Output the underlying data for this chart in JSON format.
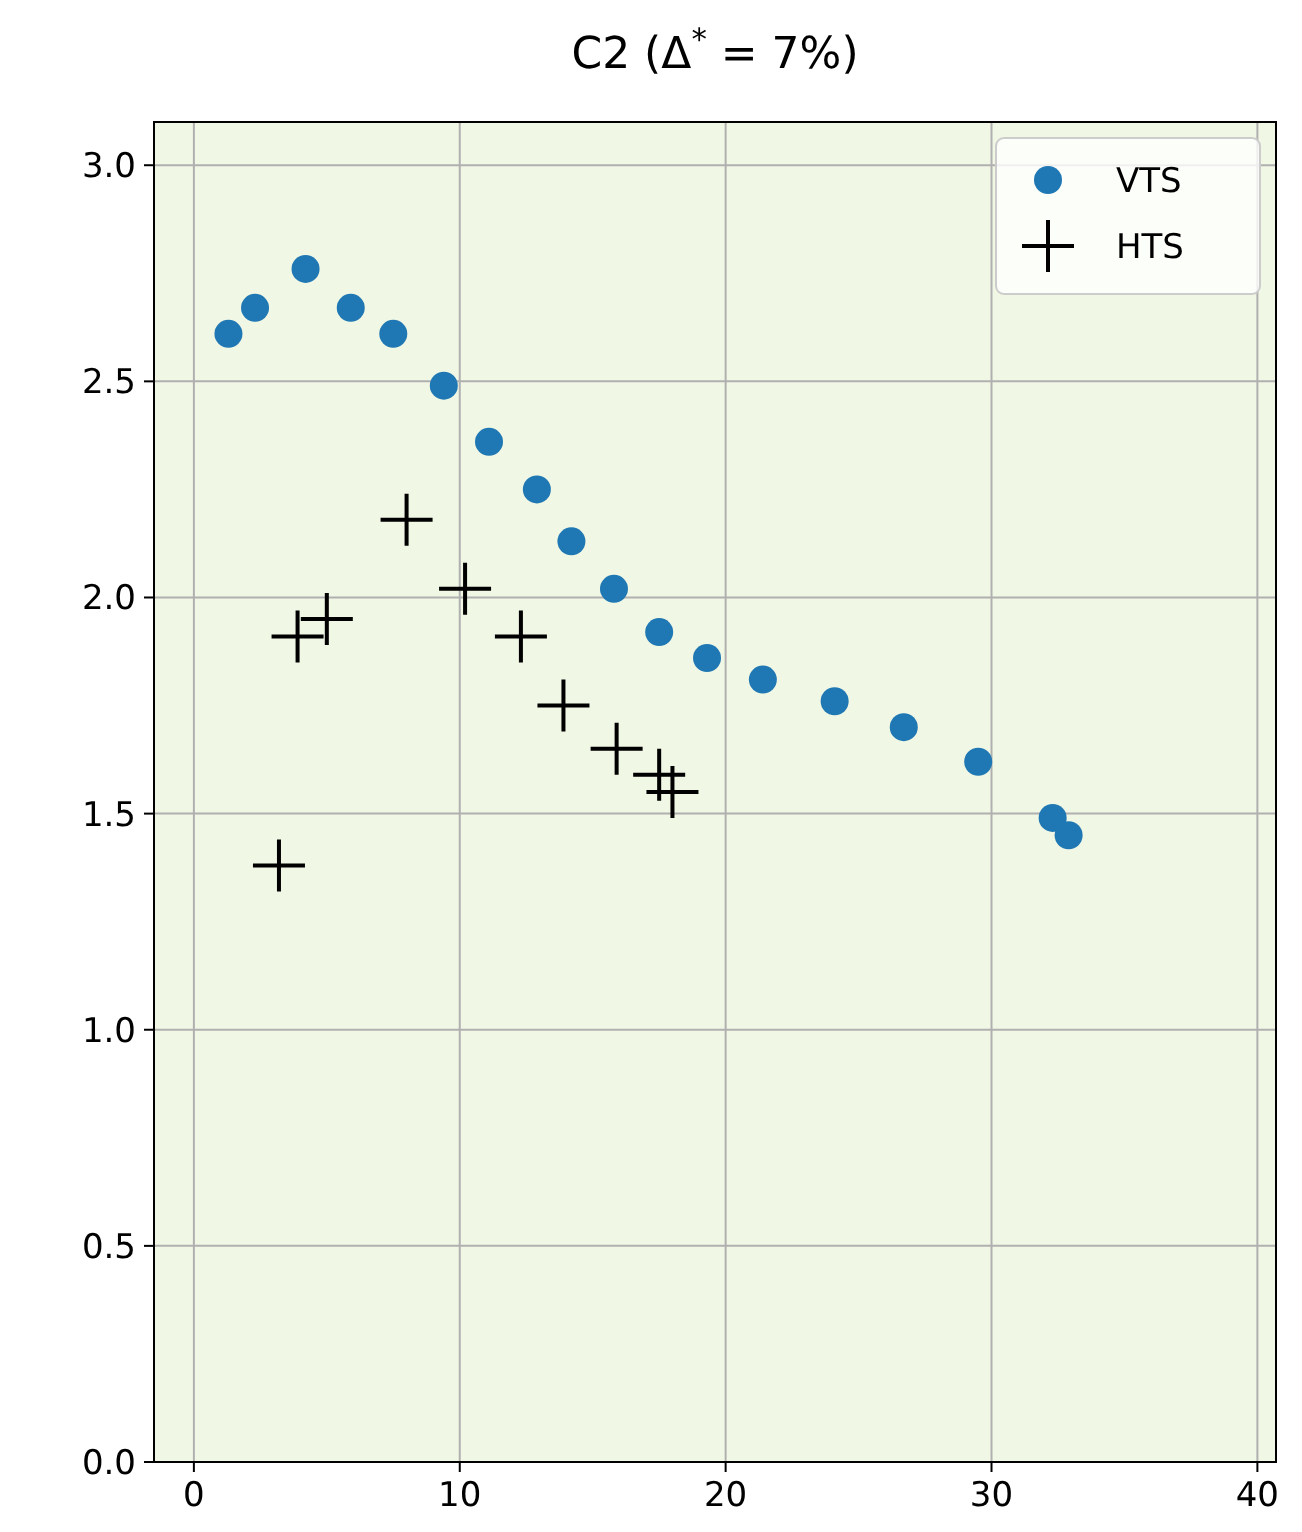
{
  "chart_data": {
    "type": "scatter",
    "title": "C2 (Δ$^{*}$ = 7%)",
    "series": [
      {
        "name": "VTS",
        "color": "#1f77b4",
        "marker": "circle",
        "x": [
          1.3,
          2.3,
          4.2,
          5.9,
          7.5,
          9.4,
          11.1,
          12.9,
          14.2,
          15.8,
          17.5,
          19.3,
          21.4,
          24.1,
          26.7,
          29.5,
          32.3,
          32.9
        ],
        "values": [
          2.61,
          2.67,
          2.76,
          2.67,
          2.61,
          2.49,
          2.36,
          2.25,
          2.13,
          2.02,
          1.92,
          1.86,
          1.81,
          1.76,
          1.7,
          1.62,
          1.49,
          1.45
        ]
      },
      {
        "name": "HTS",
        "color": "#000000",
        "marker": "cross",
        "x": [
          3.2,
          3.9,
          5.0,
          8.0,
          10.2,
          12.3,
          13.9,
          15.9,
          17.5,
          18.0
        ],
        "values": [
          1.38,
          1.91,
          1.95,
          2.18,
          2.02,
          1.91,
          1.75,
          1.65,
          1.59,
          1.55
        ]
      }
    ],
    "xlim": [
      -1.5,
      40.7
    ],
    "xticks": [
      0,
      10,
      20,
      30,
      40
    ],
    "ylim": [
      0,
      3.1
    ],
    "yticks": [
      {
        "value": 0,
        "label": "0.0"
      },
      {
        "value": 0.5,
        "label": "0.5"
      },
      {
        "value": 1,
        "label": "1.0"
      },
      {
        "value": 1.5,
        "label": "1.5"
      },
      {
        "value": 2,
        "label": "2.0"
      },
      {
        "value": 2.5,
        "label": "2.5"
      },
      {
        "value": 3,
        "label": "3.0"
      }
    ],
    "grid": true,
    "legend": "top right"
  }
}
